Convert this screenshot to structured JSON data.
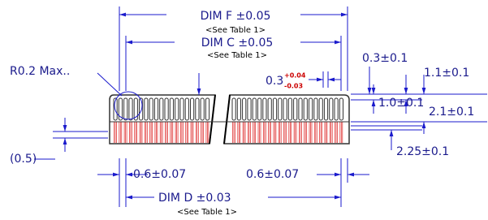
{
  "dimensions": {
    "dim_f": {
      "label": "DIM F ±0.05",
      "note": "<See Table 1>"
    },
    "dim_c": {
      "label": "DIM C ±0.05",
      "note": "<See Table 1>"
    },
    "radius": "R0.2 Max..",
    "gap": {
      "base": "0.3",
      "upper": "+0.04",
      "lower": "-0.03"
    },
    "top_offset": "0.3±0.1",
    "height_a": "1.1±0.1",
    "height_b": "1.0±0.1",
    "height_c": "2.1±0.1",
    "height_d": "2.25±0.1",
    "left_gap": "(0.5)",
    "pitch_left": "0.6±0.07",
    "pitch_right": "0.6±0.07",
    "dim_d": {
      "label": "DIM D ±0.03",
      "note": "<See Table 1>"
    }
  }
}
